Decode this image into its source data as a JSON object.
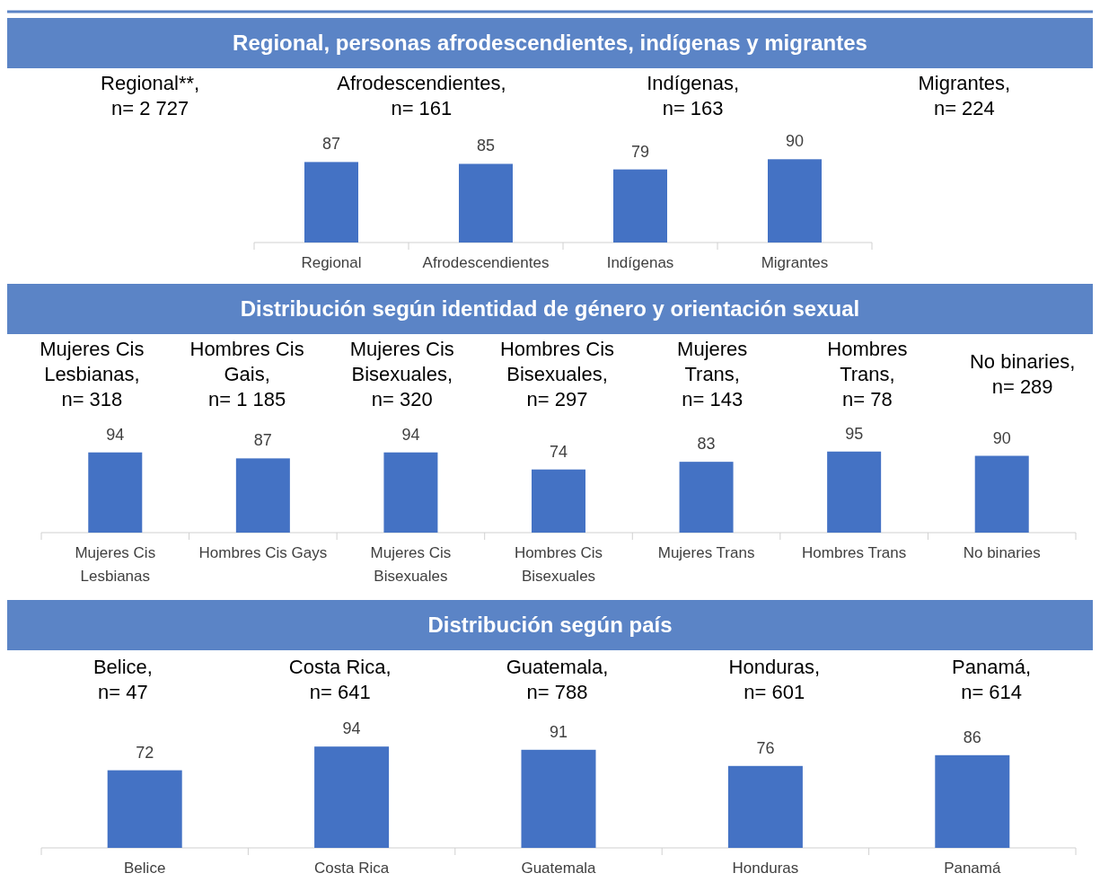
{
  "chart_data": [
    {
      "type": "bar",
      "title": "Regional, personas afrodescendientes, indígenas y migrantes",
      "annotations": [
        "Regional**,\nn= 2 727",
        "Afrodescendientes,\nn= 161",
        "Indígenas,\nn= 163",
        "Migrantes,\nn= 224"
      ],
      "categories": [
        "Regional",
        "Afrodescendientes",
        "Indígenas",
        "Migrantes"
      ],
      "values": [
        87,
        85,
        79,
        90
      ],
      "color": "#4472c4",
      "data_labels": true
    },
    {
      "type": "bar",
      "title": "Distribución según identidad de género y orientación sexual",
      "annotations": [
        "Mujeres Cis\nLesbianas,\nn= 318",
        "Hombres Cis\nGais,\nn= 1 185",
        "Mujeres Cis\nBisexuales,\nn= 320",
        "Hombres Cis\nBisexuales,\nn= 297",
        "Mujeres\nTrans,\nn= 143",
        "Hombres\nTrans,\nn= 78",
        "No binaries,\nn= 289"
      ],
      "categories": [
        "Mujeres Cis Lesbianas",
        "Hombres Cis Gays",
        "Mujeres Cis Bisexuales",
        "Hombres Cis Bisexuales",
        "Mujeres Trans",
        "Hombres Trans",
        "No binaries"
      ],
      "values": [
        94,
        87,
        94,
        74,
        83,
        95,
        90
      ],
      "color": "#4472c4",
      "data_labels": true
    },
    {
      "type": "bar",
      "title": "Distribución según país",
      "annotations": [
        "Belice,\nn= 47",
        "Costa Rica,\nn= 641",
        "Guatemala,\nn= 788",
        "Honduras,\nn= 601",
        "Panamá,\nn= 614"
      ],
      "categories": [
        "Belice",
        "Costa Rica",
        "Guatemala",
        "Honduras",
        "Panamá"
      ],
      "values": [
        72,
        94,
        91,
        76,
        86
      ],
      "color": "#4472c4",
      "data_labels": true
    }
  ]
}
